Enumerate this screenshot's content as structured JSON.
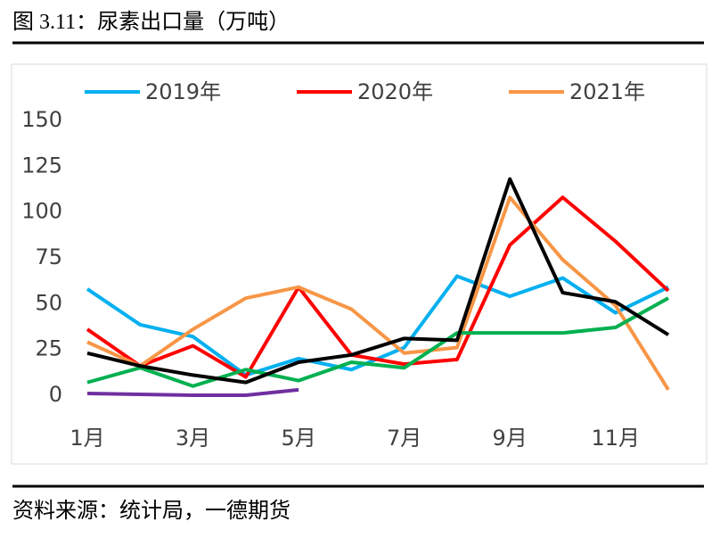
{
  "figure_title": "图 3.11：尿素出口量（万吨）",
  "source": "资料来源：统计局，一德期货",
  "chart_data": {
    "type": "line",
    "categories": [
      "1月",
      null,
      "3月",
      null,
      "5月",
      null,
      "7月",
      null,
      "9月",
      null,
      "11月",
      null
    ],
    "ylim": [
      0,
      150
    ],
    "yticks": [
      0,
      25,
      50,
      75,
      100,
      125,
      150
    ],
    "grid": false,
    "legend": "top",
    "series": [
      {
        "name": "2019年",
        "color": "#00b0f0",
        "values": [
          58,
          38.5,
          32,
          11,
          20,
          14,
          26,
          65,
          54,
          64,
          45,
          59
        ]
      },
      {
        "name": "2020年",
        "color": "#ff0000",
        "values": [
          36,
          16,
          27,
          10,
          59,
          22,
          17,
          19.5,
          82,
          108,
          84,
          57
        ]
      },
      {
        "name": "2021年",
        "color": "#f79646",
        "values": [
          29,
          16,
          36,
          53,
          59,
          47,
          23,
          26,
          108,
          74,
          49,
          3
        ]
      },
      {
        "color": "#00b050",
        "values": [
          7,
          15,
          5,
          14,
          8,
          18,
          15,
          34,
          34,
          34,
          37,
          53
        ]
      },
      {
        "color": "#000000",
        "values": [
          23,
          16,
          11,
          7,
          18,
          22,
          31,
          30,
          118,
          56,
          51,
          33
        ]
      },
      {
        "color": "#7030a0",
        "values": [
          1,
          0.5,
          0,
          0,
          3,
          null,
          null,
          null,
          null,
          null,
          null,
          null
        ]
      }
    ]
  }
}
